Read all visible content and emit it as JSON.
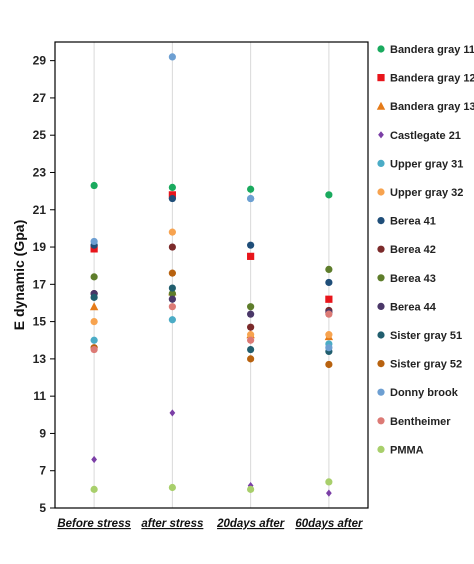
{
  "chart_data": {
    "type": "scatter",
    "title": "",
    "xlabel": "",
    "ylabel": "E dynamic (Gpa)",
    "categories": [
      "Before stress",
      "after stress",
      "20days after",
      "60days after"
    ],
    "ylim": [
      5,
      30
    ],
    "yticks": [
      5,
      7,
      9,
      11,
      13,
      15,
      17,
      19,
      21,
      23,
      25,
      27,
      29
    ],
    "grid": "vertical",
    "legend_position": "right",
    "series": [
      {
        "name": "Bandera gray 11",
        "marker": "circle",
        "color": "#1aaa5e",
        "values": [
          22.3,
          22.2,
          22.1,
          21.8
        ]
      },
      {
        "name": "Bandera gray 12",
        "marker": "square",
        "color": "#e8151b",
        "values": [
          18.9,
          21.8,
          18.5,
          16.2
        ]
      },
      {
        "name": "Bandera gray 13",
        "marker": "triangle",
        "color": "#e57b19",
        "values": [
          15.8,
          16.6,
          14.3,
          14.2
        ]
      },
      {
        "name": "Castlegate 21",
        "marker": "diamond",
        "color": "#7b3fa6",
        "values": [
          7.6,
          10.1,
          6.2,
          5.8
        ]
      },
      {
        "name": "Upper gray 31",
        "marker": "circle",
        "color": "#4bacc6",
        "values": [
          14.0,
          15.1,
          21.6,
          13.8
        ]
      },
      {
        "name": "Upper gray 32",
        "marker": "circle",
        "color": "#f7a34f",
        "values": [
          15.0,
          19.8,
          14.3,
          14.3
        ]
      },
      {
        "name": "Berea 41",
        "marker": "circle",
        "color": "#1f4e79",
        "values": [
          19.1,
          21.6,
          19.1,
          17.1
        ]
      },
      {
        "name": "Berea 42",
        "marker": "circle",
        "color": "#7b2a2a",
        "values": [
          16.5,
          19.0,
          14.7,
          15.6
        ]
      },
      {
        "name": "Berea 43",
        "marker": "circle",
        "color": "#5e7d2b",
        "values": [
          17.4,
          16.5,
          15.8,
          17.8
        ]
      },
      {
        "name": "Berea 44",
        "marker": "circle",
        "color": "#4a3768",
        "values": [
          16.5,
          16.2,
          15.4,
          15.5
        ]
      },
      {
        "name": "Sister gray 51",
        "marker": "circle",
        "color": "#215e6e",
        "values": [
          16.3,
          16.8,
          13.5,
          13.4
        ]
      },
      {
        "name": "Sister gray 52",
        "marker": "circle",
        "color": "#b8620f",
        "values": [
          13.6,
          17.6,
          13.0,
          12.7
        ]
      },
      {
        "name": "Donny brook",
        "marker": "circle",
        "color": "#6d9fd2",
        "values": [
          19.3,
          29.2,
          21.6,
          13.6
        ]
      },
      {
        "name": "Bentheimer",
        "marker": "circle",
        "color": "#dc7a75",
        "values": [
          13.5,
          15.8,
          14.0,
          15.4
        ]
      },
      {
        "name": "PMMA",
        "marker": "circle",
        "color": "#a8cf6b",
        "values": [
          6.0,
          6.1,
          6.0,
          6.4
        ]
      }
    ]
  }
}
